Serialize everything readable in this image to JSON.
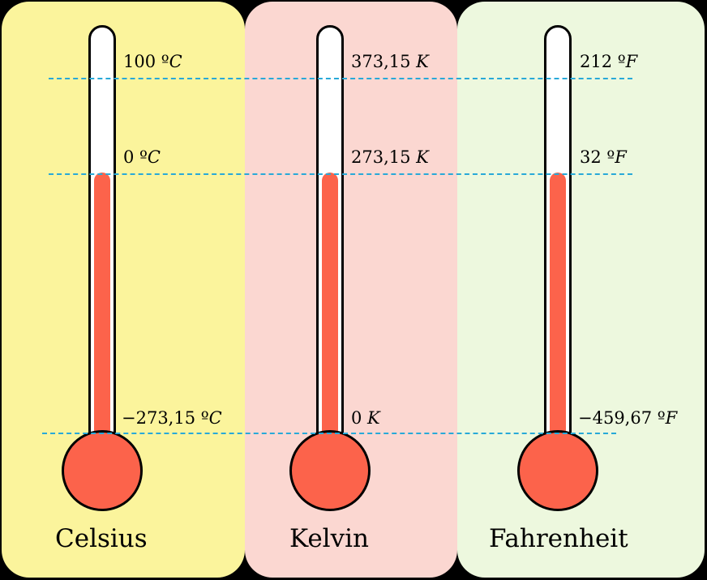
{
  "scales": [
    {
      "id": "celsius",
      "name": "Celsius",
      "marks": {
        "boiling": "100 ºC",
        "freezing": "0 ºC",
        "absolute_zero": "−273,15 ºC"
      }
    },
    {
      "id": "kelvin",
      "name": "Kelvin",
      "marks": {
        "boiling": "373,15 K",
        "freezing": "273,15 K",
        "absolute_zero": "0 K"
      }
    },
    {
      "id": "fahrenheit",
      "name": "Fahrenheit",
      "marks": {
        "boiling": "212 ºF",
        "freezing": "32 ºF",
        "absolute_zero": "−459,67 ºF"
      }
    }
  ],
  "colors": {
    "celsius_panel": "#fbf49c",
    "kelvin_panel": "#fbd7d1",
    "fahrenheit_panel": "#edf8de",
    "mercury": "#fc634b",
    "guide_line": "#28a9d8"
  }
}
